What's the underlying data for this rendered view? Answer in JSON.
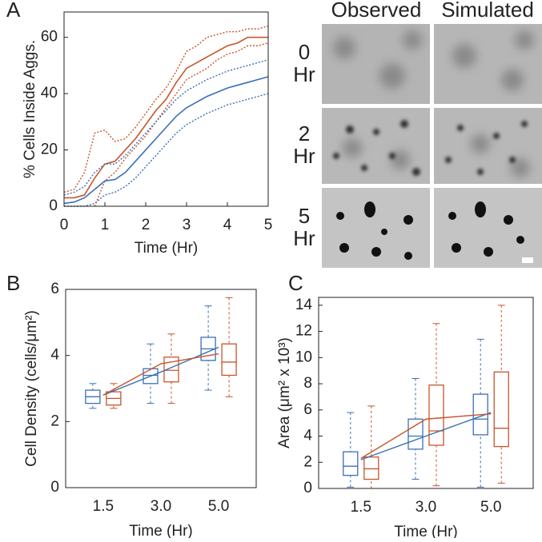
{
  "chart_data": [
    {
      "type": "line",
      "panel_label": "A",
      "xlabel": "Time (Hr)",
      "ylabel": "% Cells Inside Aggs.",
      "x": [
        0,
        0.25,
        0.5,
        0.75,
        1,
        1.25,
        1.5,
        1.75,
        2,
        2.25,
        2.5,
        2.75,
        3,
        3.25,
        3.5,
        3.75,
        4,
        4.25,
        4.5,
        4.75,
        5
      ],
      "xlim": [
        0,
        5
      ],
      "xticks": [
        0,
        1,
        2,
        3,
        4,
        5
      ],
      "ylim": [
        0,
        69
      ],
      "yticks": [
        0,
        20,
        40,
        60
      ],
      "series": [
        {
          "color": "#c8552b",
          "style": "solid",
          "values": [
            3,
            3,
            4,
            10,
            15,
            16,
            20,
            24,
            29,
            34,
            38,
            44,
            49,
            51,
            53,
            55,
            57,
            58,
            60,
            60,
            60
          ]
        },
        {
          "color": "#c8552b",
          "style": "dotted",
          "values": [
            5,
            6,
            12,
            26,
            27,
            23,
            24,
            28,
            33,
            38,
            42,
            48,
            55,
            57,
            60,
            61,
            62,
            62,
            63,
            63,
            64
          ]
        },
        {
          "color": "#c8552b",
          "style": "dotted",
          "values": [
            null,
            null,
            null,
            0,
            9,
            12,
            17,
            21,
            25,
            30,
            35,
            40,
            45,
            47,
            49,
            52,
            54,
            55,
            57,
            57,
            58
          ]
        },
        {
          "color": "#3a6fb5",
          "style": "solid",
          "values": [
            1,
            1.5,
            3,
            6,
            9,
            9.5,
            12,
            16,
            20,
            24,
            28,
            32,
            35,
            37,
            39,
            40.5,
            42,
            43,
            44,
            45,
            46
          ]
        },
        {
          "color": "#3a6fb5",
          "style": "dotted",
          "values": [
            4,
            5,
            7,
            12,
            15,
            15,
            18,
            22,
            26,
            30,
            34,
            38,
            41,
            43,
            45,
            46.5,
            48,
            49,
            50,
            51,
            52
          ]
        },
        {
          "color": "#3a6fb5",
          "style": "dotted",
          "values": [
            0,
            0,
            0,
            1,
            4,
            5,
            7,
            10,
            14,
            18,
            22,
            26,
            29,
            31,
            33,
            34.5,
            36,
            37,
            38,
            39,
            40
          ]
        }
      ]
    },
    {
      "type": "box",
      "panel_label": "B",
      "xlabel": "Time (Hr)",
      "ylabel": "Cell Density (cells/μm²)",
      "categories": [
        "1.5",
        "3.0",
        "5.0"
      ],
      "ylim": [
        0,
        6
      ],
      "yticks": [
        0,
        2,
        4,
        6
      ],
      "series": [
        {
          "color": "#3a6fb5",
          "means": [
            2.8,
            3.5,
            4.25
          ],
          "values": [
            {
              "min": 2.4,
              "q1": 2.55,
              "median": 2.75,
              "q3": 2.95,
              "max": 3.15
            },
            {
              "min": 2.55,
              "q1": 3.15,
              "median": 3.4,
              "q3": 3.6,
              "max": 4.35
            },
            {
              "min": 2.95,
              "q1": 3.85,
              "median": 4.2,
              "q3": 4.55,
              "max": 5.5
            }
          ]
        },
        {
          "color": "#c8552b",
          "means": [
            2.8,
            3.75,
            4.05
          ],
          "values": [
            {
              "min": 2.4,
              "q1": 2.5,
              "median": 2.7,
              "q3": 2.9,
              "max": 3.15
            },
            {
              "min": 2.55,
              "q1": 3.2,
              "median": 3.55,
              "q3": 3.95,
              "max": 4.65
            },
            {
              "min": 2.75,
              "q1": 3.4,
              "median": 3.8,
              "q3": 4.35,
              "max": 5.75
            }
          ]
        }
      ]
    },
    {
      "type": "box",
      "panel_label": "C",
      "xlabel": "Time (Hr)",
      "ylabel": "Area (μm² x 10³)",
      "categories": [
        "1.5",
        "3.0",
        "5.0"
      ],
      "ylim": [
        0,
        14.6
      ],
      "yticks": [
        0,
        2,
        4,
        6,
        8,
        10,
        12,
        14
      ],
      "series": [
        {
          "color": "#3a6fb5",
          "means": [
            2.2,
            4.0,
            5.8
          ],
          "values": [
            {
              "min": 0.1,
              "q1": 1.0,
              "median": 1.7,
              "q3": 2.8,
              "max": 5.8
            },
            {
              "min": 0.7,
              "q1": 3.0,
              "median": 4.0,
              "q3": 5.3,
              "max": 8.4
            },
            {
              "min": 0.1,
              "q1": 4.1,
              "median": 5.3,
              "q3": 7.2,
              "max": 11.4
            }
          ]
        },
        {
          "color": "#c8552b",
          "means": [
            2.3,
            5.3,
            5.7
          ],
          "values": [
            {
              "min": 0.0,
              "q1": 0.7,
              "median": 1.5,
              "q3": 2.4,
              "max": 6.3
            },
            {
              "min": 0.2,
              "q1": 3.3,
              "median": 4.4,
              "q3": 7.9,
              "max": 12.6
            },
            {
              "min": 0.4,
              "q1": 3.2,
              "median": 4.6,
              "q3": 8.9,
              "max": 14.0
            }
          ]
        }
      ]
    }
  ],
  "image_panel": {
    "columns": [
      "Observed",
      "Simulated"
    ],
    "rows": [
      {
        "number": "0",
        "unit": "Hr"
      },
      {
        "number": "2",
        "unit": "Hr"
      },
      {
        "number": "5",
        "unit": "Hr"
      }
    ]
  }
}
